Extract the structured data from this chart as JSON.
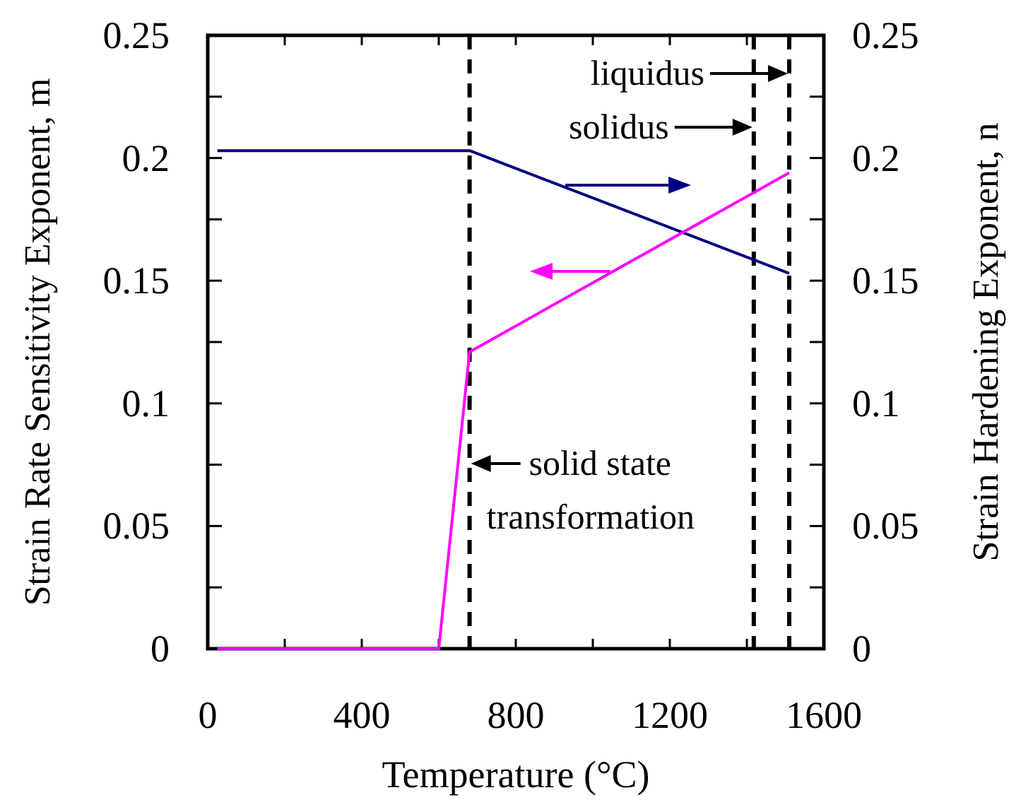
{
  "chart_data": {
    "type": "line",
    "xlabel": "Temperature (°C)",
    "ylabel": "Strain Rate Sensitivity Exponent, m",
    "y2label": "Strain Hardening Exponent, n",
    "xlim": [
      0,
      1600
    ],
    "xticks": [
      0,
      400,
      800,
      1200,
      1600
    ],
    "ylim": [
      0,
      0.25
    ],
    "yticks": [
      0,
      0.05,
      0.1,
      0.15,
      0.2,
      0.25
    ],
    "y2lim": [
      0,
      0.25
    ],
    "y2ticks": [
      0,
      0.05,
      0.1,
      0.15,
      0.2,
      0.25
    ],
    "series": [
      {
        "color": "#000080",
        "axis": "y2",
        "x": [
          25,
          680,
          1510
        ],
        "values": [
          0.203,
          0.203,
          0.153
        ]
      },
      {
        "color": "#ff00ff",
        "axis": "y",
        "x": [
          25,
          600,
          680,
          1510
        ],
        "values": [
          0,
          0,
          0.121,
          0.194
        ]
      }
    ],
    "ref_lines": [
      {
        "axis": "x",
        "value": 680,
        "label": "solid state transformation",
        "color": "#000000",
        "line_style": "dashed"
      },
      {
        "axis": "x",
        "value": 1418,
        "label": "solidus",
        "color": "#000000",
        "line_style": "dashed"
      },
      {
        "axis": "x",
        "value": 1510,
        "label": "liquidus",
        "color": "#000000",
        "line_style": "dashed"
      }
    ],
    "grid": false,
    "marker": "none",
    "line_style": "solid"
  }
}
